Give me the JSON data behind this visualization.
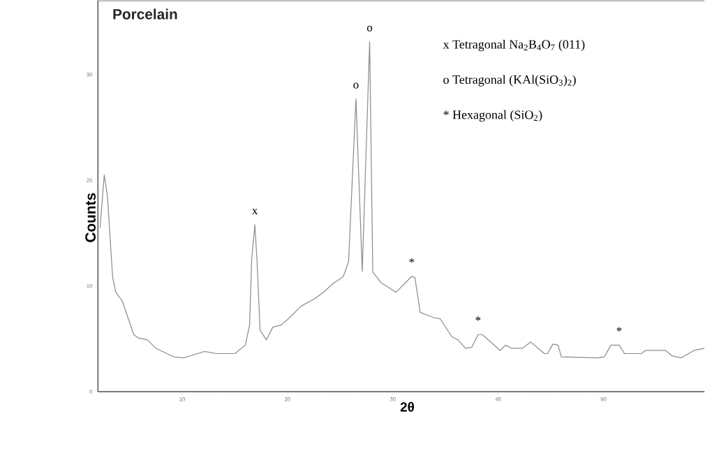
{
  "chart_data": {
    "type": "line",
    "title": "Porcelain",
    "xlabel": "2θ",
    "ylabel": "Counts",
    "color": "#8c8c8c",
    "x": [
      2.2,
      2.6,
      2.9,
      3.4,
      3.7,
      4.3,
      5.4,
      5.8,
      6.7,
      7.5,
      9.2,
      10.1,
      10.8,
      12.1,
      13.3,
      15.0,
      16.0,
      16.4,
      16.6,
      16.9,
      17.1,
      17.4,
      18.0,
      18.6,
      19.4,
      20.1,
      21.3,
      22.6,
      23.4,
      24.3,
      25.3,
      25.8,
      26.5,
      27.1,
      27.8,
      28.1,
      28.9,
      30.3,
      31.8,
      32.1,
      32.6,
      33.9,
      34.5,
      35.6,
      36.2,
      36.9,
      37.5,
      38.1,
      38.5,
      40.2,
      40.7,
      41.3,
      42.3,
      43.1,
      44.4,
      44.7,
      45.2,
      45.7,
      46.0,
      49.4,
      50.1,
      50.7,
      51.5,
      52.0,
      53.6,
      54.0,
      55.9,
      56.5,
      57.4,
      58.6,
      59.6
    ],
    "values": [
      15.5,
      20.5,
      18.5,
      10.8,
      9.4,
      8.6,
      5.4,
      5.1,
      4.9,
      4.1,
      3.3,
      3.2,
      3.4,
      3.8,
      3.6,
      3.6,
      4.4,
      6.3,
      12.5,
      15.8,
      12.5,
      5.8,
      4.9,
      6.1,
      6.3,
      6.9,
      8.1,
      8.8,
      9.4,
      10.2,
      10.9,
      12.3,
      27.7,
      11.4,
      33.1,
      11.3,
      10.3,
      9.4,
      10.9,
      10.8,
      7.5,
      7.0,
      6.9,
      5.2,
      4.9,
      4.1,
      4.2,
      5.4,
      5.4,
      3.9,
      4.4,
      4.1,
      4.1,
      4.7,
      3.6,
      3.6,
      4.5,
      4.4,
      3.3,
      3.2,
      3.3,
      4.4,
      4.4,
      3.6,
      3.6,
      3.9,
      3.9,
      3.4,
      3.2,
      3.9,
      4.1
    ],
    "xlim": [
      2,
      59.6
    ],
    "ylim": [
      0,
      37
    ],
    "xticks": [
      10,
      20,
      30,
      40,
      50
    ],
    "yticks": [
      0,
      10,
      20,
      30
    ],
    "grid": false,
    "annotations": [
      {
        "text": "x",
        "x": 16.9,
        "y": 15.8
      },
      {
        "text": "o",
        "x": 26.5,
        "y": 27.7
      },
      {
        "text": "o",
        "x": 27.8,
        "y": 33.1
      },
      {
        "text": "*",
        "x": 31.8,
        "y": 10.9
      },
      {
        "text": "*",
        "x": 38.1,
        "y": 5.4
      },
      {
        "text": "*",
        "x": 51.5,
        "y": 4.4
      },
      "x  Tetragonal Na$_{2}$B$_{4}$O$_{7}$  (011)",
      "o  Tetragonal (KAl(SiO$_{3}$)$_{2}$)",
      "*  Hexagonal (SiO$_{2}$)"
    ]
  }
}
